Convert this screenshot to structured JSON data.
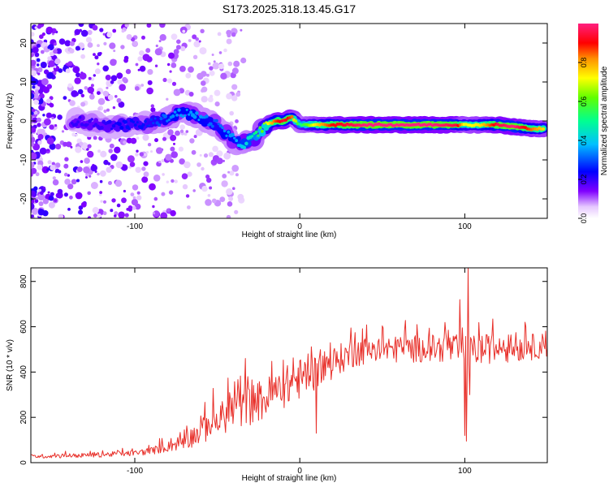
{
  "title": "S173.2025.318.13.45.G17",
  "chart_data": [
    {
      "type": "heatmap",
      "name": "spectrogram",
      "xlabel": "Height of straight line (km)",
      "ylabel": "Frequency (Hz)",
      "xlim": [
        -163,
        150
      ],
      "ylim": [
        -25,
        25
      ],
      "xticks": [
        -100,
        0,
        100
      ],
      "yticks": [
        -20,
        -10,
        0,
        10,
        20
      ],
      "ridge": {
        "description": "frequency (Hz) of the spectral ridge vs height (km)",
        "x": [
          -135,
          -120,
          -105,
          -95,
          -85,
          -75,
          -70,
          -60,
          -50,
          -45,
          -40,
          -35,
          -30,
          -25,
          -20,
          -15,
          -10,
          -5,
          0,
          10,
          20,
          40,
          60,
          80,
          95,
          100,
          110,
          120,
          130,
          140,
          148
        ],
        "freq": [
          0,
          -1,
          -1,
          -1,
          0,
          2,
          2,
          1,
          -1,
          -3,
          -5,
          -6,
          -5,
          -3,
          -1,
          0,
          0,
          1,
          -1,
          -1,
          -1,
          -1,
          -1,
          -1,
          -1,
          -1,
          -1,
          -1,
          -1.5,
          -2,
          -2
        ],
        "amplitude": [
          0.2,
          0.2,
          0.25,
          0.25,
          0.3,
          0.35,
          0.35,
          0.35,
          0.3,
          0.35,
          0.35,
          0.4,
          0.45,
          0.55,
          0.7,
          0.85,
          0.95,
          0.85,
          0.5,
          0.75,
          0.9,
          1.0,
          1.0,
          1.0,
          0.95,
          0.7,
          0.75,
          0.95,
          1.0,
          0.85,
          0.75
        ]
      },
      "colorbar": {
        "label": "Normalized spectral amplitude",
        "range": [
          0,
          1
        ],
        "ticks": [
          "0.0",
          "0.2",
          "0.4",
          "0.6",
          "0.8"
        ],
        "tick_values": [
          0.0,
          0.2,
          0.4,
          0.6,
          0.8
        ]
      }
    },
    {
      "type": "line",
      "name": "snr",
      "xlabel": "Height of straight line (km)",
      "ylabel": "SNR (10 * v/v)",
      "xlim": [
        -163,
        150
      ],
      "ylim": [
        0,
        860
      ],
      "xticks": [
        -100,
        0,
        100
      ],
      "yticks": [
        0,
        200,
        400,
        600,
        800
      ],
      "color": "#e8302a",
      "trend": {
        "x": [
          -163,
          -140,
          -120,
          -100,
          -90,
          -80,
          -70,
          -60,
          -50,
          -40,
          -30,
          -20,
          -10,
          0,
          10,
          20,
          30,
          40,
          60,
          80,
          90,
          100,
          110,
          120,
          130,
          140,
          150
        ],
        "y": [
          28,
          30,
          35,
          42,
          52,
          70,
          95,
          135,
          185,
          230,
          255,
          285,
          330,
          370,
          400,
          440,
          480,
          495,
          500,
          505,
          505,
          490,
          500,
          505,
          505,
          510,
          520
        ]
      },
      "noise": {
        "x": [
          -163,
          -100,
          -80,
          -60,
          -40,
          -20,
          0,
          20,
          40,
          80,
          100,
          150
        ],
        "amplitude": [
          8,
          12,
          22,
          55,
          85,
          95,
          90,
          70,
          60,
          60,
          70,
          55
        ]
      },
      "spikes": [
        {
          "x": -33,
          "y": 460
        },
        {
          "x": -15,
          "y": 300
        },
        {
          "x": 5,
          "y": 480
        },
        {
          "x": 10,
          "y": 130
        },
        {
          "x": 15,
          "y": 490
        },
        {
          "x": 97,
          "y": 720
        },
        {
          "x": 100,
          "y": 120
        },
        {
          "x": 101,
          "y": 95
        },
        {
          "x": 102,
          "y": 860
        },
        {
          "x": 103,
          "y": 300
        }
      ]
    }
  ]
}
